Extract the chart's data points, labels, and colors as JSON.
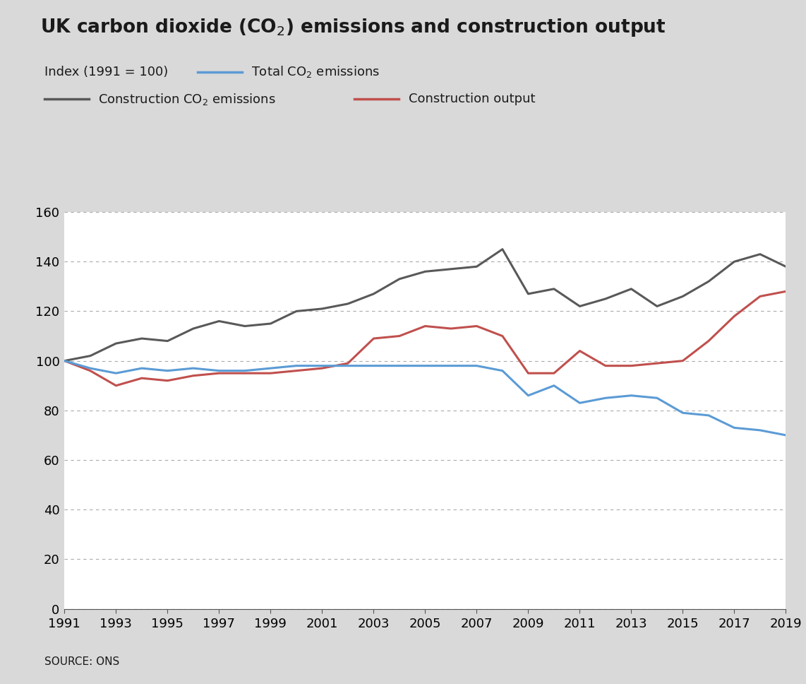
{
  "title": "UK carbon dioxide (CO$_2$) emissions and construction output",
  "subtitle": "Index (1991 = 100)",
  "source": "SOURCE: ONS",
  "background_color": "#d9d9d9",
  "plot_background_color": "#ffffff",
  "years": [
    1991,
    1992,
    1993,
    1994,
    1995,
    1996,
    1997,
    1998,
    1999,
    2000,
    2001,
    2002,
    2003,
    2004,
    2005,
    2006,
    2007,
    2008,
    2009,
    2010,
    2011,
    2012,
    2013,
    2014,
    2015,
    2016,
    2017,
    2018,
    2019
  ],
  "total_co2": [
    100,
    97,
    95,
    97,
    96,
    97,
    96,
    96,
    97,
    98,
    98,
    98,
    98,
    98,
    98,
    98,
    98,
    96,
    86,
    90,
    83,
    85,
    86,
    85,
    79,
    78,
    73,
    72,
    70
  ],
  "construction_co2": [
    100,
    102,
    107,
    109,
    108,
    113,
    116,
    114,
    115,
    120,
    121,
    123,
    127,
    133,
    136,
    137,
    138,
    145,
    127,
    129,
    122,
    125,
    129,
    122,
    126,
    132,
    140,
    143,
    138
  ],
  "construction_output": [
    100,
    96,
    90,
    93,
    92,
    94,
    95,
    95,
    95,
    96,
    97,
    99,
    109,
    110,
    114,
    113,
    114,
    110,
    95,
    95,
    104,
    98,
    98,
    99,
    100,
    108,
    118,
    126,
    128
  ],
  "total_co2_color": "#5b9bd5",
  "construction_co2_color": "#595959",
  "construction_output_color": "#c0504d",
  "ylim": [
    0,
    160
  ],
  "yticks": [
    0,
    20,
    40,
    60,
    80,
    100,
    120,
    140,
    160
  ],
  "xticks": [
    1991,
    1993,
    1995,
    1997,
    1999,
    2001,
    2003,
    2005,
    2007,
    2009,
    2011,
    2013,
    2015,
    2017,
    2019
  ],
  "line_width": 2.2,
  "tick_fontsize": 13,
  "legend_fontsize": 13,
  "title_fontsize": 19,
  "source_fontsize": 11
}
